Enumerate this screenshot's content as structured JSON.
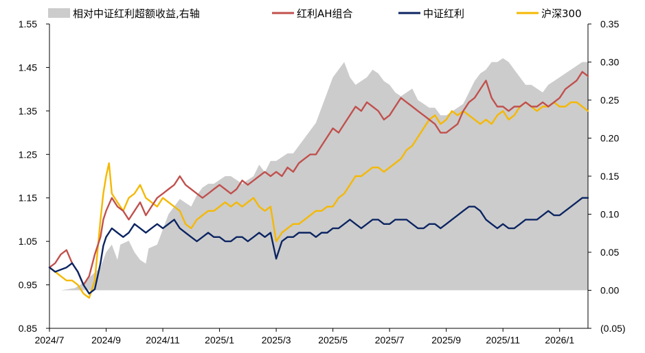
{
  "colors": {
    "excess": "#cccccc",
    "ah_portfolio": "#c0504d",
    "csi_dividend": "#0b2461",
    "hs300": "#f5b800",
    "negative_tick": "#e00000"
  },
  "chart_data": {
    "type": "line",
    "legend": [
      {
        "label": "相对中证红利超额收益,右轴",
        "series": "excess",
        "kind": "area",
        "axis": "right"
      },
      {
        "label": "红利AH组合",
        "series": "ah_portfolio",
        "kind": "line",
        "axis": "left"
      },
      {
        "label": "中证红利",
        "series": "csi_dividend",
        "kind": "line",
        "axis": "left"
      },
      {
        "label": "沪深300",
        "series": "hs300",
        "kind": "line",
        "axis": "left"
      }
    ],
    "x_axis": {
      "range": [
        0,
        19.0
      ],
      "unit": "months since 2024/7",
      "ticks": [
        {
          "label": "2024/7",
          "v": 0
        },
        {
          "label": "2024/9",
          "v": 2
        },
        {
          "label": "2024/11",
          "v": 4
        },
        {
          "label": "2025/1",
          "v": 6
        },
        {
          "label": "2025/3",
          "v": 8
        },
        {
          "label": "2025/5",
          "v": 10
        },
        {
          "label": "2025/7",
          "v": 12
        },
        {
          "label": "2025/9",
          "v": 14
        },
        {
          "label": "2025/11",
          "v": 16
        },
        {
          "label": "2026/1",
          "v": 18
        }
      ]
    },
    "y_left": {
      "range": [
        0.85,
        1.55
      ],
      "ticks": [
        {
          "label": "1.55",
          "v": 1.55
        },
        {
          "label": "1.45",
          "v": 1.45
        },
        {
          "label": "1.35",
          "v": 1.35
        },
        {
          "label": "1.25",
          "v": 1.25
        },
        {
          "label": "1.15",
          "v": 1.15
        },
        {
          "label": "1.05",
          "v": 1.05
        },
        {
          "label": "0.95",
          "v": 0.95
        },
        {
          "label": "0.85",
          "v": 0.85
        }
      ]
    },
    "y_right": {
      "range": [
        -0.05,
        0.35
      ],
      "ticks": [
        {
          "label": "0.35",
          "v": 0.35
        },
        {
          "label": "0.30",
          "v": 0.3
        },
        {
          "label": "0.25",
          "v": 0.25
        },
        {
          "label": "0.20",
          "v": 0.2
        },
        {
          "label": "0.15",
          "v": 0.15
        },
        {
          "label": "0.10",
          "v": 0.1
        },
        {
          "label": "0.05",
          "v": 0.05
        },
        {
          "label": "0.00",
          "v": 0.0
        },
        {
          "label": "(0.05)",
          "v": -0.05,
          "negative": true
        }
      ]
    },
    "series": {
      "excess": {
        "name": "相对中证红利超额收益,右轴",
        "x": [
          0,
          0.4,
          0.9,
          1.2,
          1.5,
          1.8,
          2.0,
          2.2,
          2.4,
          2.5,
          2.8,
          3.0,
          3.2,
          3.4,
          3.5,
          3.8,
          4.0,
          4.2,
          4.4,
          4.6,
          4.8,
          5.0,
          5.2,
          5.4,
          5.6,
          5.8,
          6.0,
          6.2,
          6.4,
          6.6,
          6.8,
          7.0,
          7.2,
          7.4,
          7.6,
          7.8,
          8.0,
          8.2,
          8.4,
          8.6,
          8.8,
          9.0,
          9.2,
          9.4,
          9.6,
          9.8,
          10.0,
          10.2,
          10.4,
          10.6,
          10.8,
          11.0,
          11.2,
          11.4,
          11.6,
          11.8,
          12.0,
          12.2,
          12.4,
          12.6,
          12.8,
          13.0,
          13.2,
          13.4,
          13.6,
          13.8,
          14.0,
          14.2,
          14.4,
          14.6,
          14.8,
          15.0,
          15.2,
          15.4,
          15.6,
          15.8,
          16.0,
          16.2,
          16.4,
          16.6,
          16.8,
          17.0,
          17.2,
          17.4,
          17.6,
          17.8,
          18.0,
          18.2,
          18.4,
          18.6,
          18.8,
          19.0
        ],
        "values": [
          0.0,
          0.0,
          0.003,
          0.01,
          0.02,
          0.03,
          0.05,
          0.06,
          0.04,
          0.06,
          0.065,
          0.05,
          0.04,
          0.035,
          0.055,
          0.06,
          0.08,
          0.1,
          0.11,
          0.12,
          0.115,
          0.11,
          0.125,
          0.135,
          0.14,
          0.14,
          0.145,
          0.15,
          0.15,
          0.145,
          0.14,
          0.145,
          0.15,
          0.165,
          0.155,
          0.17,
          0.17,
          0.175,
          0.18,
          0.18,
          0.19,
          0.2,
          0.21,
          0.22,
          0.24,
          0.26,
          0.28,
          0.29,
          0.3,
          0.28,
          0.27,
          0.275,
          0.28,
          0.29,
          0.285,
          0.275,
          0.27,
          0.26,
          0.255,
          0.26,
          0.265,
          0.25,
          0.245,
          0.24,
          0.24,
          0.23,
          0.23,
          0.235,
          0.24,
          0.245,
          0.26,
          0.275,
          0.285,
          0.29,
          0.3,
          0.3,
          0.305,
          0.3,
          0.29,
          0.28,
          0.27,
          0.27,
          0.265,
          0.26,
          0.27,
          0.275,
          0.28,
          0.285,
          0.29,
          0.295,
          0.3,
          0.3
        ]
      },
      "ah_portfolio": {
        "name": "红利AH组合",
        "x": [
          0,
          0.2,
          0.4,
          0.6,
          0.8,
          1.0,
          1.2,
          1.4,
          1.6,
          1.8,
          1.9,
          2.0,
          2.2,
          2.4,
          2.6,
          2.8,
          3.0,
          3.2,
          3.4,
          3.6,
          3.8,
          4.0,
          4.2,
          4.4,
          4.6,
          4.8,
          5.0,
          5.2,
          5.4,
          5.6,
          5.8,
          6.0,
          6.2,
          6.4,
          6.6,
          6.8,
          7.0,
          7.2,
          7.4,
          7.6,
          7.8,
          8.0,
          8.2,
          8.4,
          8.6,
          8.8,
          9.0,
          9.2,
          9.4,
          9.6,
          9.8,
          10.0,
          10.2,
          10.4,
          10.6,
          10.8,
          11.0,
          11.2,
          11.4,
          11.6,
          11.8,
          12.0,
          12.2,
          12.4,
          12.6,
          12.8,
          13.0,
          13.2,
          13.4,
          13.6,
          13.8,
          14.0,
          14.2,
          14.4,
          14.6,
          14.8,
          15.0,
          15.2,
          15.4,
          15.6,
          15.8,
          16.0,
          16.2,
          16.4,
          16.6,
          16.8,
          17.0,
          17.2,
          17.4,
          17.6,
          17.8,
          18.0,
          18.2,
          18.4,
          18.6,
          18.8,
          19.0
        ],
        "values": [
          0.99,
          1.0,
          1.02,
          1.03,
          1.0,
          0.98,
          0.95,
          0.97,
          1.02,
          1.06,
          1.1,
          1.12,
          1.15,
          1.13,
          1.12,
          1.1,
          1.12,
          1.14,
          1.11,
          1.13,
          1.15,
          1.16,
          1.17,
          1.18,
          1.2,
          1.18,
          1.17,
          1.16,
          1.15,
          1.16,
          1.17,
          1.18,
          1.17,
          1.16,
          1.17,
          1.19,
          1.18,
          1.19,
          1.2,
          1.21,
          1.2,
          1.21,
          1.2,
          1.22,
          1.21,
          1.23,
          1.24,
          1.25,
          1.25,
          1.27,
          1.29,
          1.31,
          1.3,
          1.32,
          1.34,
          1.36,
          1.35,
          1.37,
          1.36,
          1.35,
          1.33,
          1.34,
          1.36,
          1.38,
          1.37,
          1.36,
          1.35,
          1.34,
          1.33,
          1.32,
          1.3,
          1.3,
          1.31,
          1.32,
          1.35,
          1.37,
          1.38,
          1.4,
          1.42,
          1.38,
          1.36,
          1.36,
          1.35,
          1.36,
          1.36,
          1.37,
          1.36,
          1.36,
          1.37,
          1.36,
          1.37,
          1.38,
          1.4,
          1.41,
          1.42,
          1.44,
          1.43
        ]
      },
      "csi_dividend": {
        "name": "中证红利",
        "x": [
          0,
          0.2,
          0.4,
          0.6,
          0.8,
          1.0,
          1.2,
          1.4,
          1.6,
          1.8,
          1.9,
          2.0,
          2.2,
          2.4,
          2.6,
          2.8,
          3.0,
          3.2,
          3.4,
          3.6,
          3.8,
          4.0,
          4.2,
          4.4,
          4.6,
          4.8,
          5.0,
          5.2,
          5.4,
          5.6,
          5.8,
          6.0,
          6.2,
          6.4,
          6.6,
          6.8,
          7.0,
          7.2,
          7.4,
          7.6,
          7.8,
          8.0,
          8.2,
          8.4,
          8.6,
          8.8,
          9.0,
          9.2,
          9.4,
          9.6,
          9.8,
          10.0,
          10.2,
          10.4,
          10.6,
          10.8,
          11.0,
          11.2,
          11.4,
          11.6,
          11.8,
          12.0,
          12.2,
          12.4,
          12.6,
          12.8,
          13.0,
          13.2,
          13.4,
          13.6,
          13.8,
          14.0,
          14.2,
          14.4,
          14.6,
          14.8,
          15.0,
          15.2,
          15.4,
          15.6,
          15.8,
          16.0,
          16.2,
          16.4,
          16.6,
          16.8,
          17.0,
          17.2,
          17.4,
          17.6,
          17.8,
          18.0,
          18.2,
          18.4,
          18.6,
          18.8,
          19.0
        ],
        "values": [
          0.99,
          0.98,
          0.985,
          0.99,
          1.0,
          0.98,
          0.95,
          0.93,
          0.94,
          1.0,
          1.04,
          1.06,
          1.08,
          1.07,
          1.06,
          1.07,
          1.09,
          1.08,
          1.07,
          1.08,
          1.09,
          1.08,
          1.09,
          1.1,
          1.08,
          1.07,
          1.06,
          1.05,
          1.06,
          1.07,
          1.06,
          1.06,
          1.05,
          1.05,
          1.06,
          1.06,
          1.05,
          1.06,
          1.07,
          1.06,
          1.07,
          1.01,
          1.05,
          1.06,
          1.06,
          1.07,
          1.07,
          1.07,
          1.06,
          1.07,
          1.07,
          1.08,
          1.08,
          1.09,
          1.1,
          1.09,
          1.08,
          1.09,
          1.1,
          1.1,
          1.09,
          1.09,
          1.1,
          1.1,
          1.1,
          1.09,
          1.08,
          1.08,
          1.09,
          1.09,
          1.08,
          1.09,
          1.1,
          1.11,
          1.12,
          1.13,
          1.13,
          1.12,
          1.1,
          1.09,
          1.08,
          1.09,
          1.08,
          1.08,
          1.09,
          1.1,
          1.1,
          1.1,
          1.11,
          1.12,
          1.11,
          1.11,
          1.12,
          1.13,
          1.14,
          1.15,
          1.15
        ]
      },
      "hs300": {
        "name": "沪深300",
        "x": [
          0,
          0.2,
          0.4,
          0.6,
          0.8,
          1.0,
          1.2,
          1.4,
          1.6,
          1.8,
          1.9,
          2.0,
          2.1,
          2.2,
          2.4,
          2.6,
          2.8,
          3.0,
          3.2,
          3.4,
          3.6,
          3.8,
          4.0,
          4.2,
          4.4,
          4.6,
          4.8,
          5.0,
          5.2,
          5.4,
          5.6,
          5.8,
          6.0,
          6.2,
          6.4,
          6.6,
          6.8,
          7.0,
          7.2,
          7.4,
          7.6,
          7.8,
          8.0,
          8.2,
          8.4,
          8.6,
          8.8,
          9.0,
          9.2,
          9.4,
          9.6,
          9.8,
          10.0,
          10.2,
          10.4,
          10.6,
          10.8,
          11.0,
          11.2,
          11.4,
          11.6,
          11.8,
          12.0,
          12.2,
          12.4,
          12.6,
          12.8,
          13.0,
          13.2,
          13.4,
          13.6,
          13.8,
          14.0,
          14.2,
          14.4,
          14.6,
          14.8,
          15.0,
          15.2,
          15.4,
          15.6,
          15.8,
          16.0,
          16.2,
          16.4,
          16.6,
          16.8,
          17.0,
          17.2,
          17.4,
          17.6,
          17.8,
          18.0,
          18.2,
          18.4,
          18.6,
          18.8,
          19.0
        ],
        "values": [
          0.99,
          0.98,
          0.97,
          0.96,
          0.96,
          0.95,
          0.93,
          0.92,
          0.96,
          1.1,
          1.16,
          1.2,
          1.23,
          1.16,
          1.14,
          1.12,
          1.15,
          1.16,
          1.18,
          1.15,
          1.14,
          1.13,
          1.15,
          1.14,
          1.13,
          1.12,
          1.09,
          1.08,
          1.1,
          1.11,
          1.12,
          1.12,
          1.13,
          1.14,
          1.13,
          1.14,
          1.13,
          1.14,
          1.15,
          1.13,
          1.12,
          1.13,
          1.05,
          1.07,
          1.08,
          1.09,
          1.09,
          1.1,
          1.11,
          1.12,
          1.12,
          1.13,
          1.13,
          1.15,
          1.16,
          1.18,
          1.2,
          1.2,
          1.21,
          1.22,
          1.22,
          1.21,
          1.22,
          1.23,
          1.24,
          1.26,
          1.27,
          1.29,
          1.31,
          1.33,
          1.34,
          1.32,
          1.33,
          1.35,
          1.34,
          1.35,
          1.34,
          1.33,
          1.32,
          1.33,
          1.32,
          1.34,
          1.35,
          1.33,
          1.34,
          1.36,
          1.37,
          1.36,
          1.35,
          1.36,
          1.36,
          1.37,
          1.36,
          1.36,
          1.37,
          1.37,
          1.36,
          1.35
        ]
      }
    }
  }
}
